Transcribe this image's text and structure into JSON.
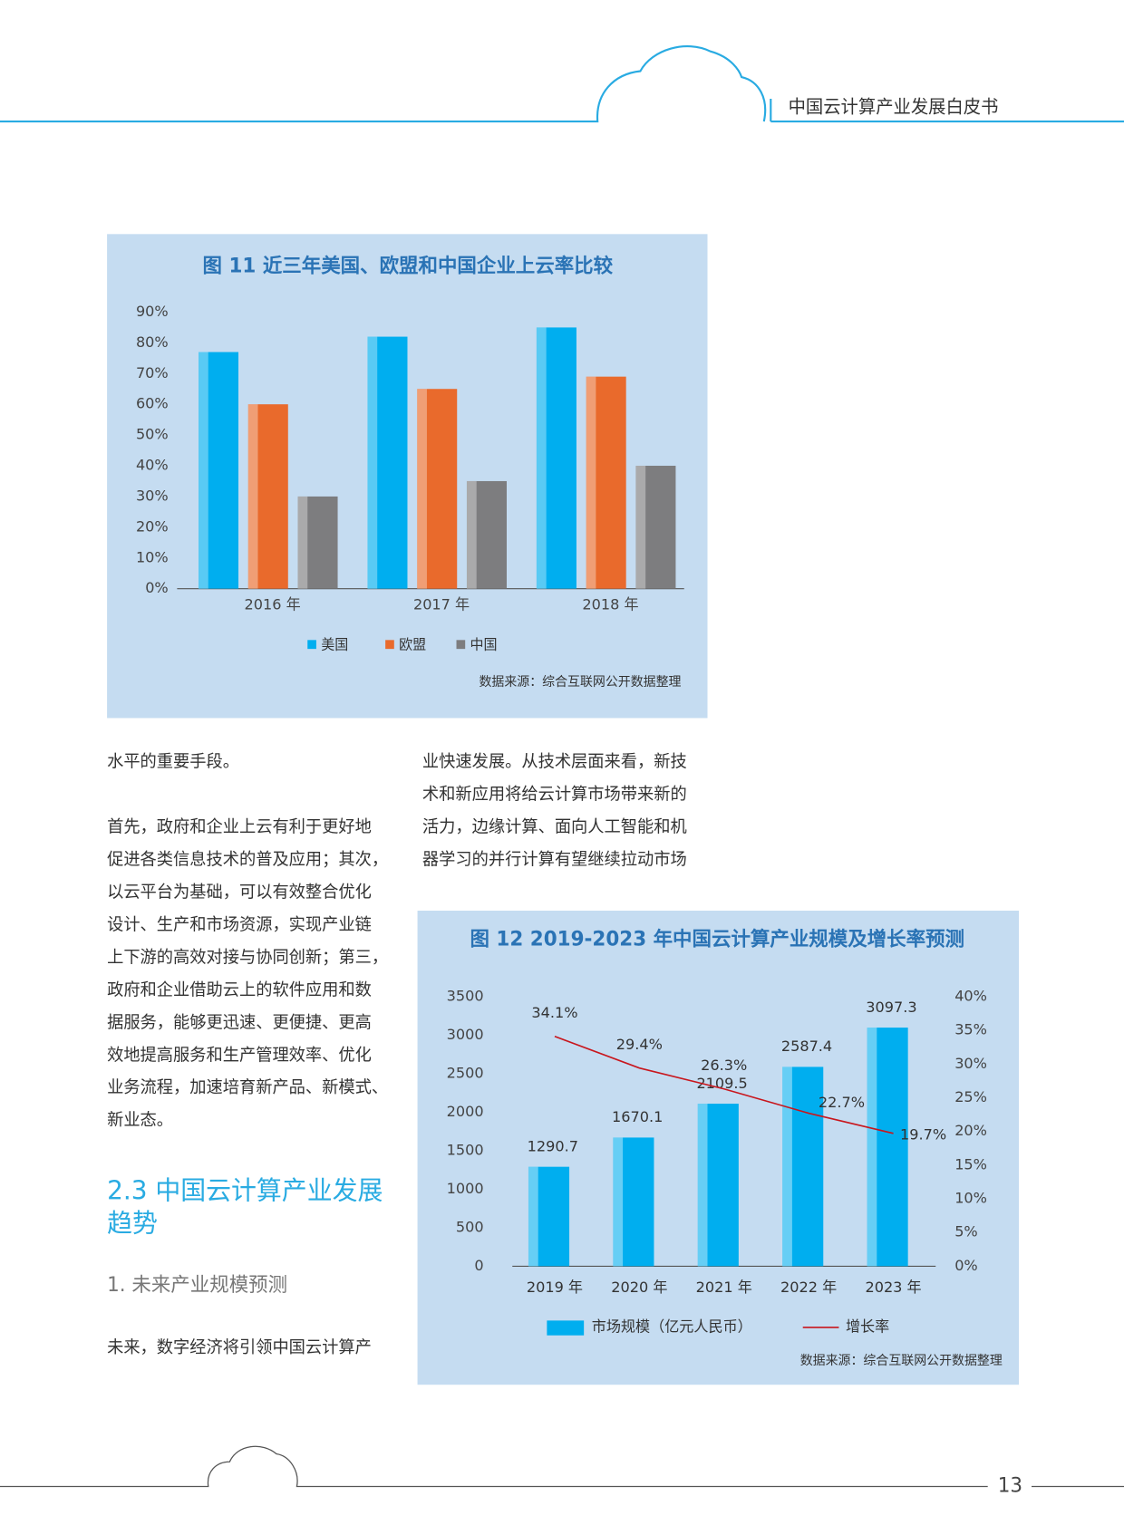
{
  "header": {
    "title": "中国云计算产业发展白皮书"
  },
  "chart_data": [
    {
      "type": "bar",
      "title": "图 11  近三年美国、欧盟和中国企业上云率比较",
      "categories": [
        "2016 年",
        "2017 年",
        "2018 年"
      ],
      "series": [
        {
          "name": "美国",
          "color": "#00aeef",
          "values": [
            77,
            82,
            85
          ]
        },
        {
          "name": "欧盟",
          "color": "#e96a2c",
          "values": [
            60,
            65,
            69
          ]
        },
        {
          "name": "中国",
          "color": "#7d7d7f",
          "values": [
            30,
            35,
            40
          ]
        }
      ],
      "ylim": [
        0,
        90
      ],
      "yticks": [
        {
          "value": 0,
          "label": "0%"
        },
        {
          "value": 10,
          "label": "10%"
        },
        {
          "value": 20,
          "label": "20%"
        },
        {
          "value": 30,
          "label": "30%"
        },
        {
          "value": 40,
          "label": "40%"
        },
        {
          "value": 50,
          "label": "50%"
        },
        {
          "value": 60,
          "label": "60%"
        },
        {
          "value": 70,
          "label": "70%"
        },
        {
          "value": 80,
          "label": "80%"
        },
        {
          "value": 90,
          "label": "90%"
        }
      ],
      "legend": "bottom",
      "source": "数据来源：综合互联网公开数据整理"
    },
    {
      "type": "bar-line",
      "title": "图 12  2019-2023 年中国云计算产业规模及增长率预测",
      "categories": [
        "2019 年",
        "2020 年",
        "2021 年",
        "2022 年",
        "2023 年"
      ],
      "series": [
        {
          "name": "市场规模（亿元人民币）",
          "color": "#00aeef",
          "type": "bar",
          "values": [
            1290.7,
            1670.1,
            2109.5,
            2587.4,
            3097.3
          ]
        },
        {
          "name": "增长率",
          "color": "#c8161d",
          "type": "line",
          "axis": "y2",
          "values": [
            34.1,
            29.4,
            26.3,
            22.7,
            19.7
          ],
          "value_labels": [
            "34.1%",
            "29.4%",
            "26.3%",
            "22.7%",
            "19.7%"
          ]
        }
      ],
      "ylim": [
        0,
        3500
      ],
      "yticks": [
        0,
        500,
        1000,
        1500,
        2000,
        2500,
        3000,
        3500
      ],
      "y2lim": [
        0,
        40
      ],
      "y2ticks": [
        {
          "value": 0,
          "label": "0%"
        },
        {
          "value": 5,
          "label": "5%"
        },
        {
          "value": 10,
          "label": "10%"
        },
        {
          "value": 15,
          "label": "15%"
        },
        {
          "value": 20,
          "label": "20%"
        },
        {
          "value": 25,
          "label": "25%"
        },
        {
          "value": 30,
          "label": "30%"
        },
        {
          "value": 35,
          "label": "35%"
        },
        {
          "value": 40,
          "label": "40%"
        }
      ],
      "legend": "bottom",
      "source": "数据来源：综合互联网公开数据整理"
    }
  ],
  "body": {
    "left_column": [
      [
        "水平的重要手段。"
      ],
      [
        "首先，政府和企业上云有利于更好地",
        "促进各类信息技术的普及应用；其次，",
        "以云平台为基础，可以有效整合优化",
        "设计、生产和市场资源，实现产业链",
        "上下游的高效对接与协同创新；第三，",
        "政府和企业借助云上的软件应用和数",
        "据服务，能够更迅速、更便捷、更高",
        "效地提高服务和生产管理效率、优化",
        "业务流程，加速培育新产品、新模式、",
        "新业态。"
      ]
    ],
    "section_heading": [
      "2.3 中国云计算产业发展",
      "趋势"
    ],
    "subsection": "1. 未来产业规模预测",
    "left_last": "未来，数字经济将引领中国云计算产",
    "right_column": [
      "业快速发展。从技术层面来看，新技",
      "术和新应用将给云计算市场带来新的",
      "活力，边缘计算、面向人工智能和机",
      "器学习的并行计算有望继续拉动市场"
    ]
  },
  "footer": {
    "page_number": "13"
  }
}
